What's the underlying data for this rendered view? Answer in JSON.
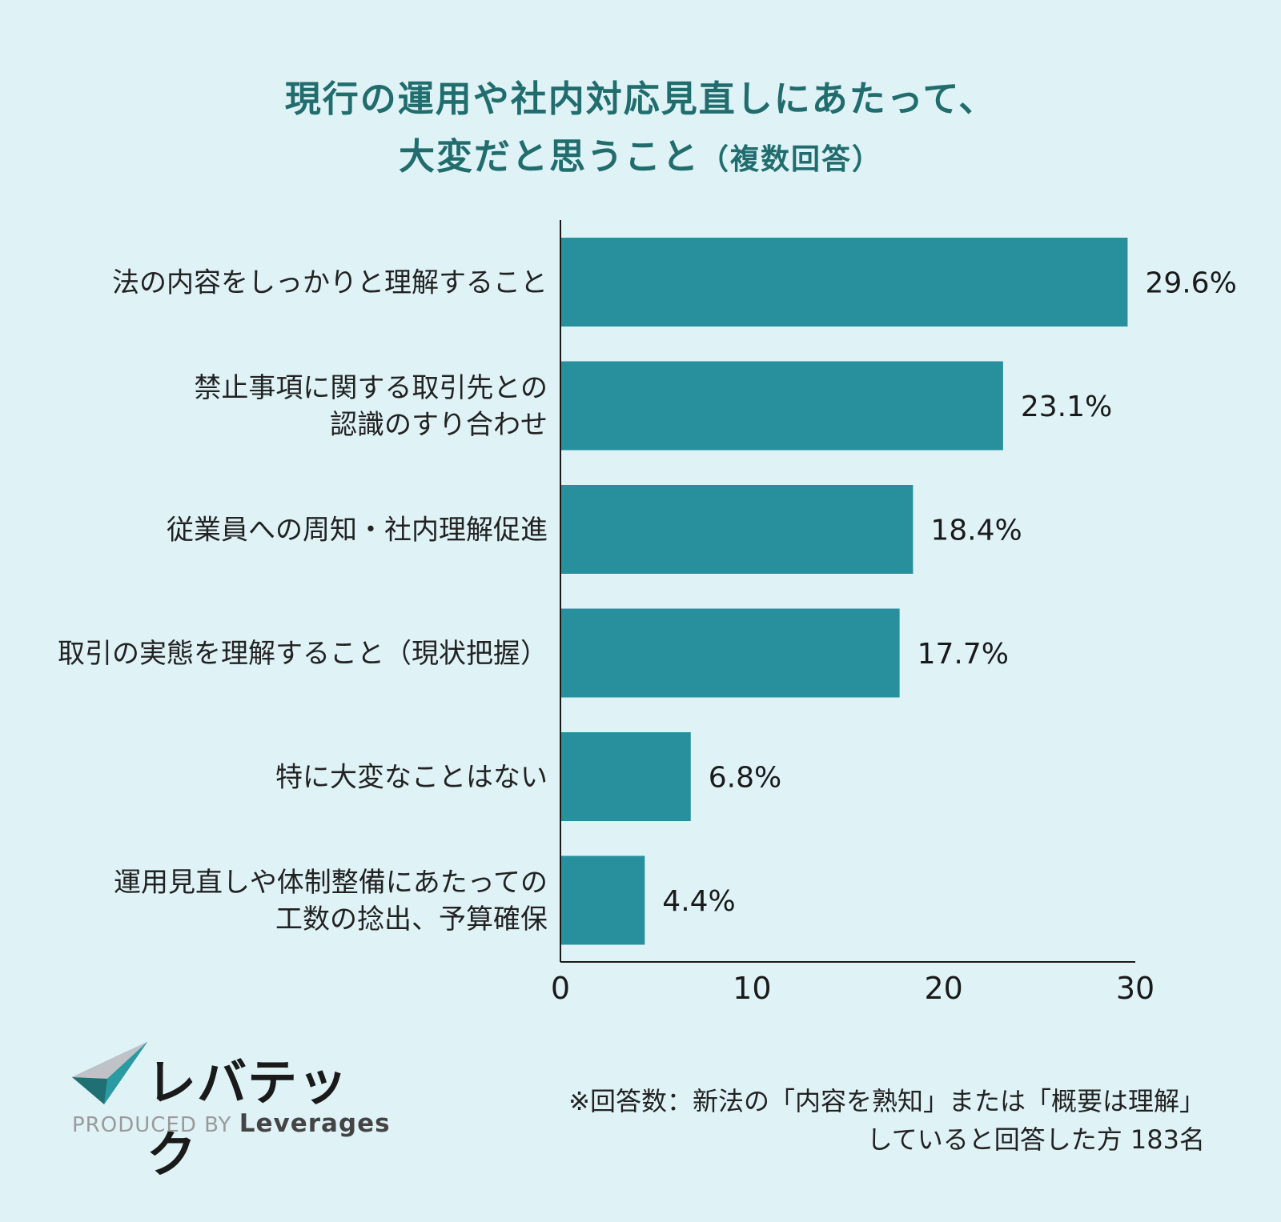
{
  "title": {
    "line1": "現行の運用や社内対応見直しにあたって、",
    "line2": "大変だと思うこと",
    "line2_suffix": "（複数回答）"
  },
  "chart_data": {
    "type": "bar",
    "orientation": "horizontal",
    "categories": [
      [
        "法の内容をしっかりと理解すること"
      ],
      [
        "禁止事項に関する取引先との",
        "認識のすり合わせ"
      ],
      [
        "従業員への周知・社内理解促進"
      ],
      [
        "取引の実態を理解すること（現状把握）"
      ],
      [
        "特に大変なことはない"
      ],
      [
        "運用見直しや体制整備にあたっての",
        "工数の捻出、予算確保"
      ]
    ],
    "values": [
      29.6,
      23.1,
      18.4,
      17.7,
      6.8,
      4.4
    ],
    "value_labels": [
      "29.6%",
      "23.1%",
      "18.4%",
      "17.7%",
      "6.8%",
      "4.4%"
    ],
    "xlim": [
      0,
      30
    ],
    "ticks": [
      "0",
      "10",
      "20",
      "30"
    ],
    "bar_color": "#288f9c",
    "grid": false,
    "legend": "none"
  },
  "logo": {
    "name": "レバテック",
    "produced_by": "PRODUCED BY",
    "company": "Leverages"
  },
  "note": {
    "line1": "※回答数：新法の「内容を熟知」または「概要は理解」",
    "line2": "していると回答した方 183名"
  }
}
